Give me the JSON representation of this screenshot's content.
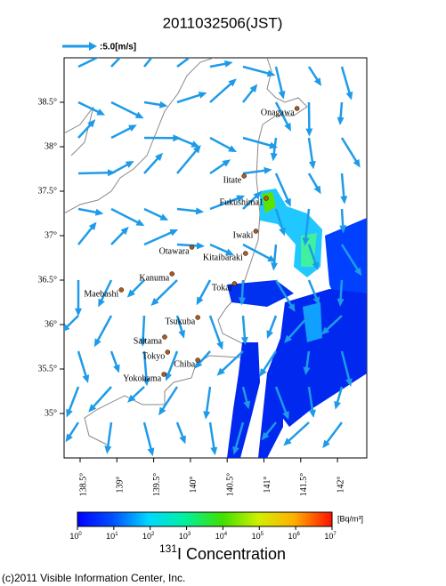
{
  "title": "2011032506(JST)",
  "wind_legend": ":5.0[m/s]",
  "map": {
    "lon_ticks": [
      {
        "value": 138.5,
        "label": "138.5°"
      },
      {
        "value": 139,
        "label": "139°"
      },
      {
        "value": 139.5,
        "label": "139.5°"
      },
      {
        "value": 140,
        "label": "140°"
      },
      {
        "value": 140.5,
        "label": "140.5°"
      },
      {
        "value": 141,
        "label": "141°"
      },
      {
        "value": 141.5,
        "label": "141.5°"
      },
      {
        "value": 142,
        "label": "142°"
      }
    ],
    "lat_ticks": [
      {
        "value": 38.5,
        "label": "38.5°"
      },
      {
        "value": 38,
        "label": "38°"
      },
      {
        "value": 37.5,
        "label": "37.5°"
      },
      {
        "value": 37,
        "label": "37°"
      },
      {
        "value": 36.5,
        "label": "36.5°"
      },
      {
        "value": 36,
        "label": "36°"
      },
      {
        "value": 35.5,
        "label": "35.5°"
      },
      {
        "value": 35,
        "label": "35°"
      }
    ],
    "places": [
      {
        "name": "Onagawa",
        "lon": 141.45,
        "lat": 38.43
      },
      {
        "name": "Iitate",
        "lon": 140.73,
        "lat": 37.67
      },
      {
        "name": "Fukushima1",
        "lon": 141.03,
        "lat": 37.42
      },
      {
        "name": "Iwaki",
        "lon": 140.89,
        "lat": 37.05
      },
      {
        "name": "Otawara",
        "lon": 140.02,
        "lat": 36.87
      },
      {
        "name": "Kitaibaraki",
        "lon": 140.75,
        "lat": 36.8
      },
      {
        "name": "Kanuma",
        "lon": 139.75,
        "lat": 36.57
      },
      {
        "name": "Tokai",
        "lon": 140.6,
        "lat": 36.46
      },
      {
        "name": "Maebashi",
        "lon": 139.06,
        "lat": 36.39
      },
      {
        "name": "Tsukuba",
        "lon": 140.1,
        "lat": 36.08
      },
      {
        "name": "Saitama",
        "lon": 139.65,
        "lat": 35.86
      },
      {
        "name": "Tokyo",
        "lon": 139.69,
        "lat": 35.69
      },
      {
        "name": "Chiba",
        "lon": 140.1,
        "lat": 35.6
      },
      {
        "name": "Yokohama",
        "lon": 139.64,
        "lat": 35.44
      }
    ]
  },
  "colorbar": {
    "ticks": [
      {
        "base": "10",
        "exp": "0"
      },
      {
        "base": "10",
        "exp": "1"
      },
      {
        "base": "10",
        "exp": "2"
      },
      {
        "base": "10",
        "exp": "3"
      },
      {
        "base": "10",
        "exp": "4"
      },
      {
        "base": "10",
        "exp": "5"
      },
      {
        "base": "10",
        "exp": "6"
      },
      {
        "base": "10",
        "exp": "7"
      }
    ],
    "unit": "[Bq/m³]",
    "title_sup": "131",
    "title": "I Concentration"
  },
  "footer": "(c)2011 Visible Information Center, Inc."
}
